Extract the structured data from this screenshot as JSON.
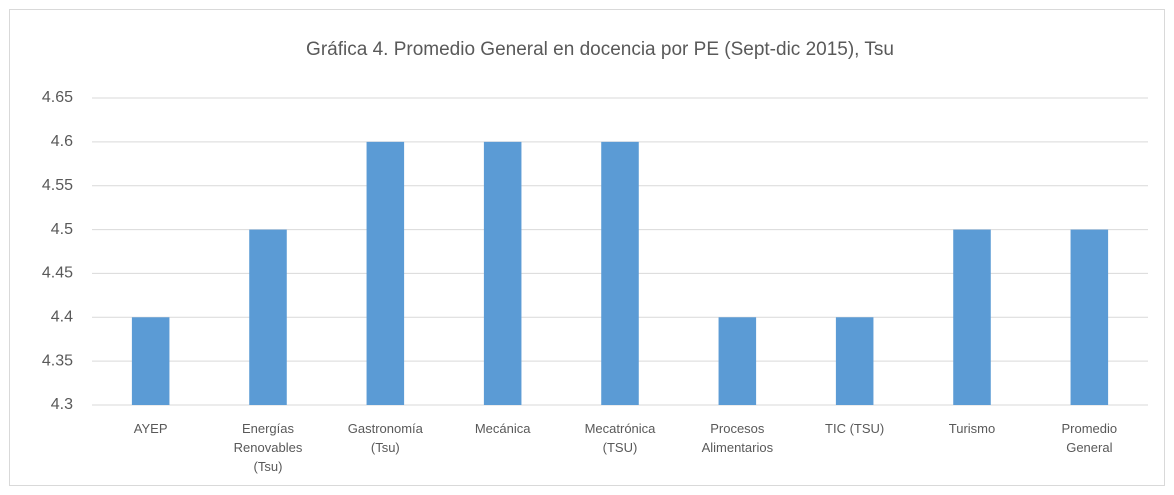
{
  "chart_data": {
    "type": "bar",
    "title": "Gráfica 4. Promedio General en docencia por PE  (Sept-dic 2015), Tsu",
    "categories": [
      "AYEP",
      "Energías Renovables (Tsu)",
      "Gastronomía (Tsu)",
      "Mecánica",
      "Mecatrónica (TSU)",
      "Procesos Alimentarios",
      "TIC (TSU)",
      "Turismo",
      "Promedio General"
    ],
    "values": [
      4.4,
      4.5,
      4.6,
      4.6,
      4.6,
      4.4,
      4.4,
      4.5,
      4.5
    ],
    "color": "#5b9bd5",
    "ylim": [
      4.3,
      4.65
    ],
    "yticks": [
      4.3,
      4.35,
      4.4,
      4.45,
      4.5,
      4.55,
      4.6,
      4.65
    ],
    "grid": true
  }
}
